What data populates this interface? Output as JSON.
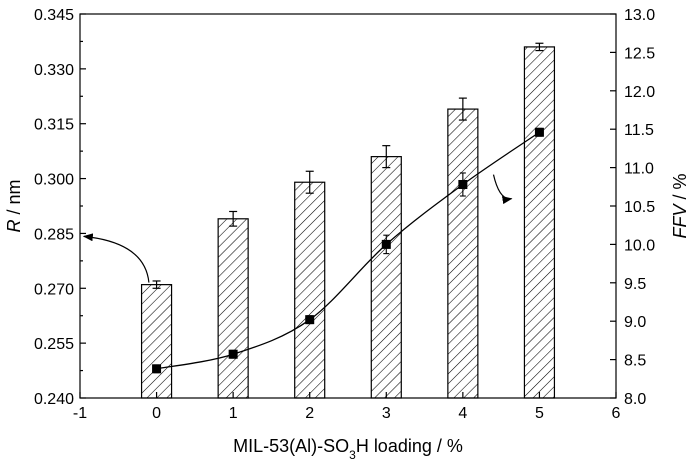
{
  "chart_data": {
    "type": "bar",
    "x_axis": {
      "label_prefix": "MIL-53(Al)-SO",
      "label_sub": "3",
      "label_suffix": "H loading / %",
      "range": [
        -1,
        6
      ],
      "ticks": [
        "-1",
        "0",
        "1",
        "2",
        "3",
        "4",
        "5",
        "6"
      ]
    },
    "y_left": {
      "label_italic": "R",
      "label_rest": " / nm",
      "range": [
        0.24,
        0.345
      ],
      "ticks": [
        "0.240",
        "0.255",
        "0.270",
        "0.285",
        "0.300",
        "0.315",
        "0.330",
        "0.345"
      ]
    },
    "y_right": {
      "label_italic": "FFV",
      "label_rest": " / %",
      "range": [
        8.0,
        13.0
      ],
      "ticks": [
        "8.0",
        "8.5",
        "9.0",
        "9.5",
        "10.0",
        "10.5",
        "11.0",
        "11.5",
        "12.0",
        "12.5",
        "13.0"
      ]
    },
    "bars": {
      "axis": "left",
      "pattern": "hatched",
      "x": [
        0,
        1,
        2,
        3,
        4,
        5
      ],
      "values": [
        0.271,
        0.289,
        0.299,
        0.306,
        0.319,
        0.336
      ],
      "errors": [
        0.001,
        0.002,
        0.003,
        0.003,
        0.003,
        0.001
      ]
    },
    "line": {
      "axis": "right",
      "marker": "square",
      "x": [
        0,
        1,
        2,
        3,
        4,
        5
      ],
      "values": [
        8.38,
        8.57,
        9.02,
        10.0,
        10.78,
        11.46
      ],
      "errors": [
        0.05,
        0.05,
        0.05,
        0.12,
        0.15,
        0.05
      ]
    },
    "annotations": [
      {
        "points_to": "left-axis",
        "near_x": -0.1,
        "near_y_right": 10.05
      },
      {
        "points_to": "right-axis",
        "near_x": 4.4,
        "near_y_right": 10.7
      }
    ],
    "grid": false
  }
}
